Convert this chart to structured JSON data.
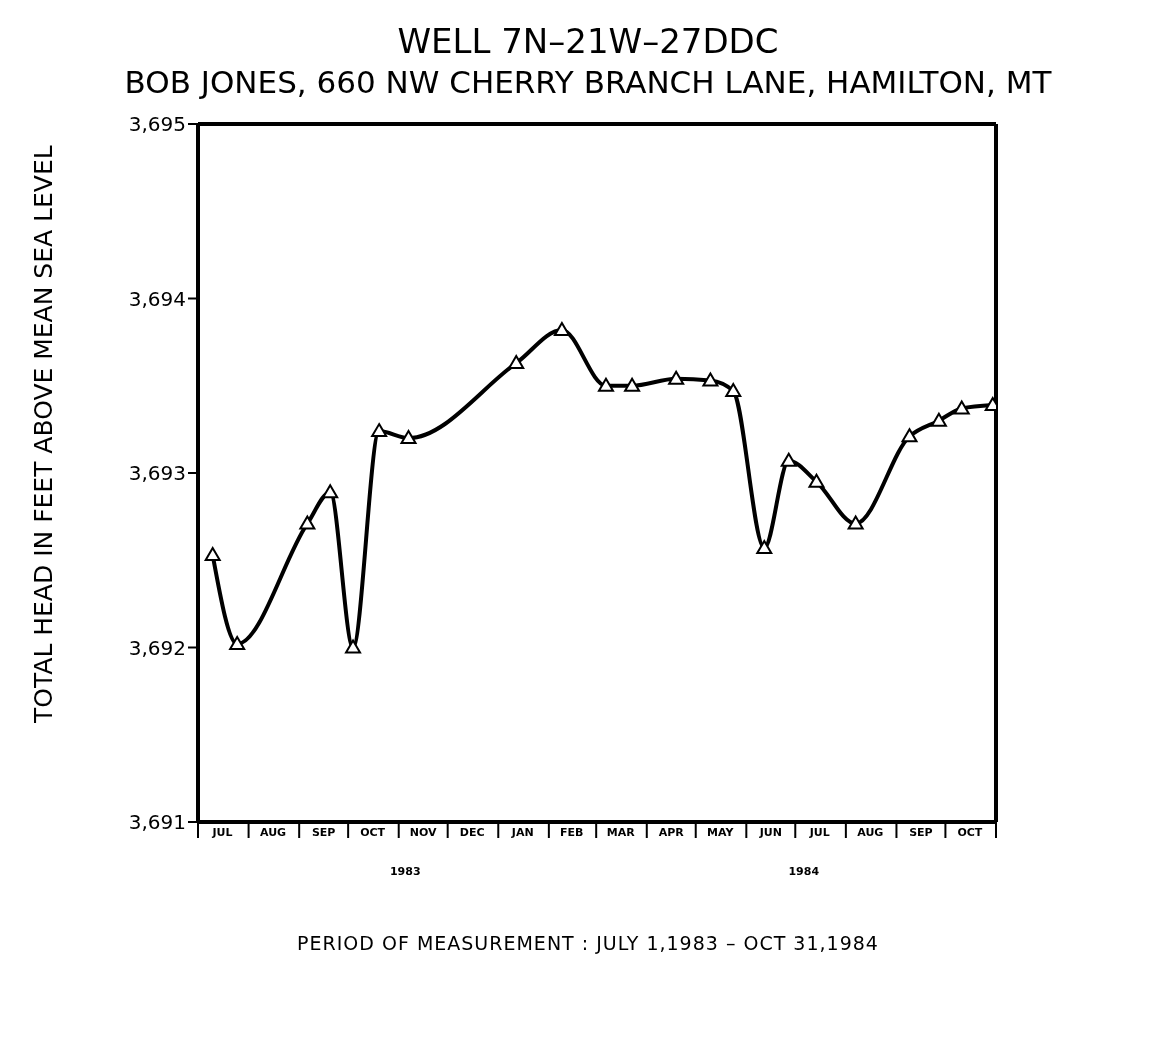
{
  "chart_data": {
    "type": "line",
    "title": "WELL 7N–21W–27DDC",
    "subtitle": "BOB JONES, 660 NW CHERRY BRANCH LANE, HAMILTON, MT",
    "xlabel": "PERIOD OF MEASUREMENT : JULY 1,1983 – OCT 31,1984",
    "ylabel": "TOTAL HEAD IN FEET ABOVE MEAN SEA LEVEL",
    "x": [
      "1983-07-10",
      "1983-07-25",
      "1983-09-06",
      "1983-09-20",
      "1983-10-04",
      "1983-10-20",
      "1983-11-07",
      "1984-01-12",
      "1984-02-09",
      "1984-03-07",
      "1984-03-23",
      "1984-04-19",
      "1984-05-10",
      "1984-05-24",
      "1984-06-12",
      "1984-06-27",
      "1984-07-14",
      "1984-08-07",
      "1984-09-09",
      "1984-09-27",
      "1984-10-11",
      "1984-10-30"
    ],
    "series": [
      {
        "color": "#000000",
        "values": [
          3692.53,
          3692.02,
          3692.71,
          3692.89,
          3692.0,
          3693.24,
          3693.2,
          3693.63,
          3693.82,
          3693.5,
          3693.5,
          3693.54,
          3693.53,
          3693.47,
          3692.57,
          3693.07,
          3692.95,
          3692.71,
          3693.21,
          3693.3,
          3693.37,
          3693.39
        ]
      }
    ],
    "xlim": [
      "1983-07-01",
      "1984-11-01"
    ],
    "xticks": [
      {
        "value": "1983-07-01",
        "label": null
      },
      {
        "value": "1983-07-16",
        "label": "JUL"
      },
      {
        "value": "1983-08-01",
        "label": null
      },
      {
        "value": "1983-08-16",
        "label": "AUG"
      },
      {
        "value": "1983-09-01",
        "label": null
      },
      {
        "value": "1983-09-16",
        "label": "SEP"
      },
      {
        "value": "1983-10-01",
        "label": null
      },
      {
        "value": "1983-10-16",
        "label": "OCT"
      },
      {
        "value": "1983-11-01",
        "label": null
      },
      {
        "value": "1983-11-16",
        "label": "NOV"
      },
      {
        "value": "1983-12-01",
        "label": null
      },
      {
        "value": "1983-12-16",
        "label": "DEC"
      },
      {
        "value": "1984-01-01",
        "label": null
      },
      {
        "value": "1984-01-16",
        "label": "JAN"
      },
      {
        "value": "1984-02-01",
        "label": null
      },
      {
        "value": "1984-02-15",
        "label": "FEB"
      },
      {
        "value": "1984-03-01",
        "label": null
      },
      {
        "value": "1984-03-16",
        "label": "MAR"
      },
      {
        "value": "1984-04-01",
        "label": null
      },
      {
        "value": "1984-04-16",
        "label": "APR"
      },
      {
        "value": "1984-05-01",
        "label": null
      },
      {
        "value": "1984-05-16",
        "label": "MAY"
      },
      {
        "value": "1984-06-01",
        "label": null
      },
      {
        "value": "1984-06-16",
        "label": "JUN"
      },
      {
        "value": "1984-07-01",
        "label": null
      },
      {
        "value": "1984-07-16",
        "label": "JUL"
      },
      {
        "value": "1984-08-01",
        "label": null
      },
      {
        "value": "1984-08-16",
        "label": "AUG"
      },
      {
        "value": "1984-09-01",
        "label": null
      },
      {
        "value": "1984-09-16",
        "label": "SEP"
      },
      {
        "value": "1984-10-01",
        "label": null
      },
      {
        "value": "1984-10-16",
        "label": "OCT"
      },
      {
        "value": "1984-11-01",
        "label": null
      }
    ],
    "ylim": [
      3691,
      3695
    ],
    "yticks": [
      {
        "value": 3691,
        "label": "3,691"
      },
      {
        "value": 3692,
        "label": "3,692"
      },
      {
        "value": 3693,
        "label": "3,693"
      },
      {
        "value": 3694,
        "label": "3,694"
      },
      {
        "value": 3695,
        "label": "3,695"
      }
    ],
    "annotations": [
      "1983",
      "1984"
    ],
    "marker": "triangle",
    "line_style": "solid"
  }
}
